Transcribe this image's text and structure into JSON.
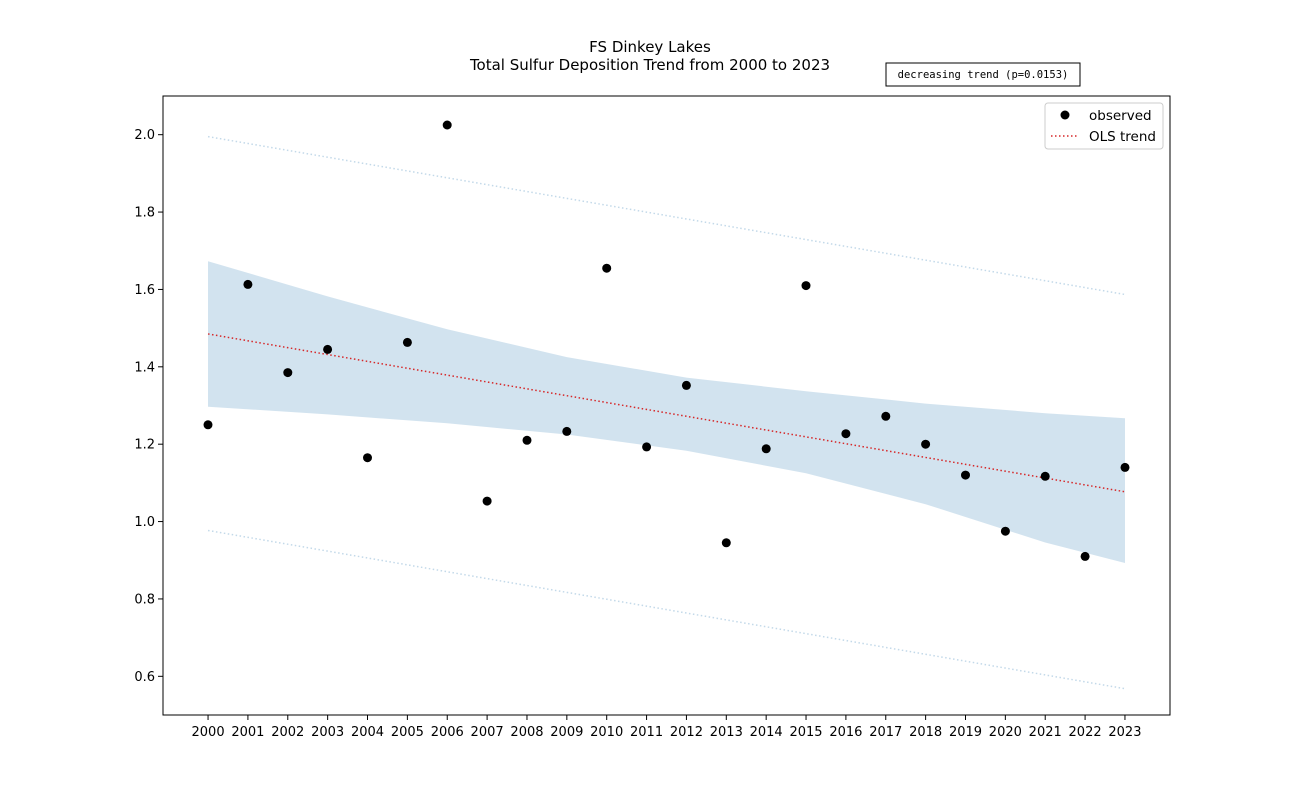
{
  "chart_data": {
    "type": "scatter",
    "title": "FS Dinkey Lakes",
    "subtitle": "Total Sulfur Deposition Trend from 2000 to 2023",
    "xlabel": "",
    "ylabel": "",
    "x": [
      2000,
      2001,
      2002,
      2003,
      2004,
      2005,
      2006,
      2007,
      2008,
      2009,
      2010,
      2011,
      2012,
      2013,
      2014,
      2015,
      2016,
      2017,
      2018,
      2019,
      2020,
      2021,
      2022,
      2023
    ],
    "x_tick_labels": [
      "2000",
      "2001",
      "2002",
      "2003",
      "2004",
      "2005",
      "2006",
      "2007",
      "2008",
      "2009",
      "2010",
      "2011",
      "2012",
      "2013",
      "2014",
      "2015",
      "2016",
      "2017",
      "2018",
      "2019",
      "2020",
      "2021",
      "2022",
      "2023"
    ],
    "xlim": [
      1998.87,
      2024.13
    ],
    "ylim": [
      0.5,
      2.1
    ],
    "y_ticks": [
      0.6,
      0.8,
      1.0,
      1.2,
      1.4,
      1.6,
      1.8,
      2.0
    ],
    "y_tick_labels": [
      "0.6",
      "0.8",
      "1.0",
      "1.2",
      "1.4",
      "1.6",
      "1.8",
      "2.0"
    ],
    "series": [
      {
        "name": "observed",
        "kind": "scatter",
        "color": "#000000",
        "values": [
          1.25,
          1.613,
          1.385,
          1.445,
          1.165,
          1.463,
          2.025,
          1.053,
          1.21,
          1.233,
          1.655,
          1.193,
          1.352,
          0.945,
          1.188,
          1.61,
          1.227,
          1.272,
          1.2,
          1.12,
          0.975,
          1.117,
          0.91,
          1.14
        ]
      },
      {
        "name": "OLS trend",
        "kind": "line",
        "style": "dotted",
        "color": "#d62728",
        "start": [
          2000,
          1.485
        ],
        "end": [
          2023,
          1.077
        ]
      }
    ],
    "confidence_band": {
      "color": "#c3d9e9",
      "x": [
        2000,
        2003,
        2006,
        2009,
        2012,
        2015,
        2018,
        2021,
        2023
      ],
      "upper": [
        1.673,
        1.582,
        1.497,
        1.425,
        1.372,
        1.337,
        1.305,
        1.28,
        1.267
      ],
      "lower": [
        1.297,
        1.277,
        1.254,
        1.225,
        1.183,
        1.125,
        1.045,
        0.946,
        0.893
      ]
    },
    "prediction_band": {
      "color": "#c3d9e9",
      "style": "dotted",
      "upper_start": [
        2000,
        1.995
      ],
      "upper_end": [
        2023,
        1.587
      ],
      "lower_start": [
        2000,
        0.977
      ],
      "lower_end": [
        2023,
        0.568
      ]
    },
    "annotation": "decreasing trend (p=0.0153)",
    "legend": {
      "position": "top-right",
      "entries": [
        "observed",
        "OLS trend"
      ]
    },
    "grid": false
  }
}
